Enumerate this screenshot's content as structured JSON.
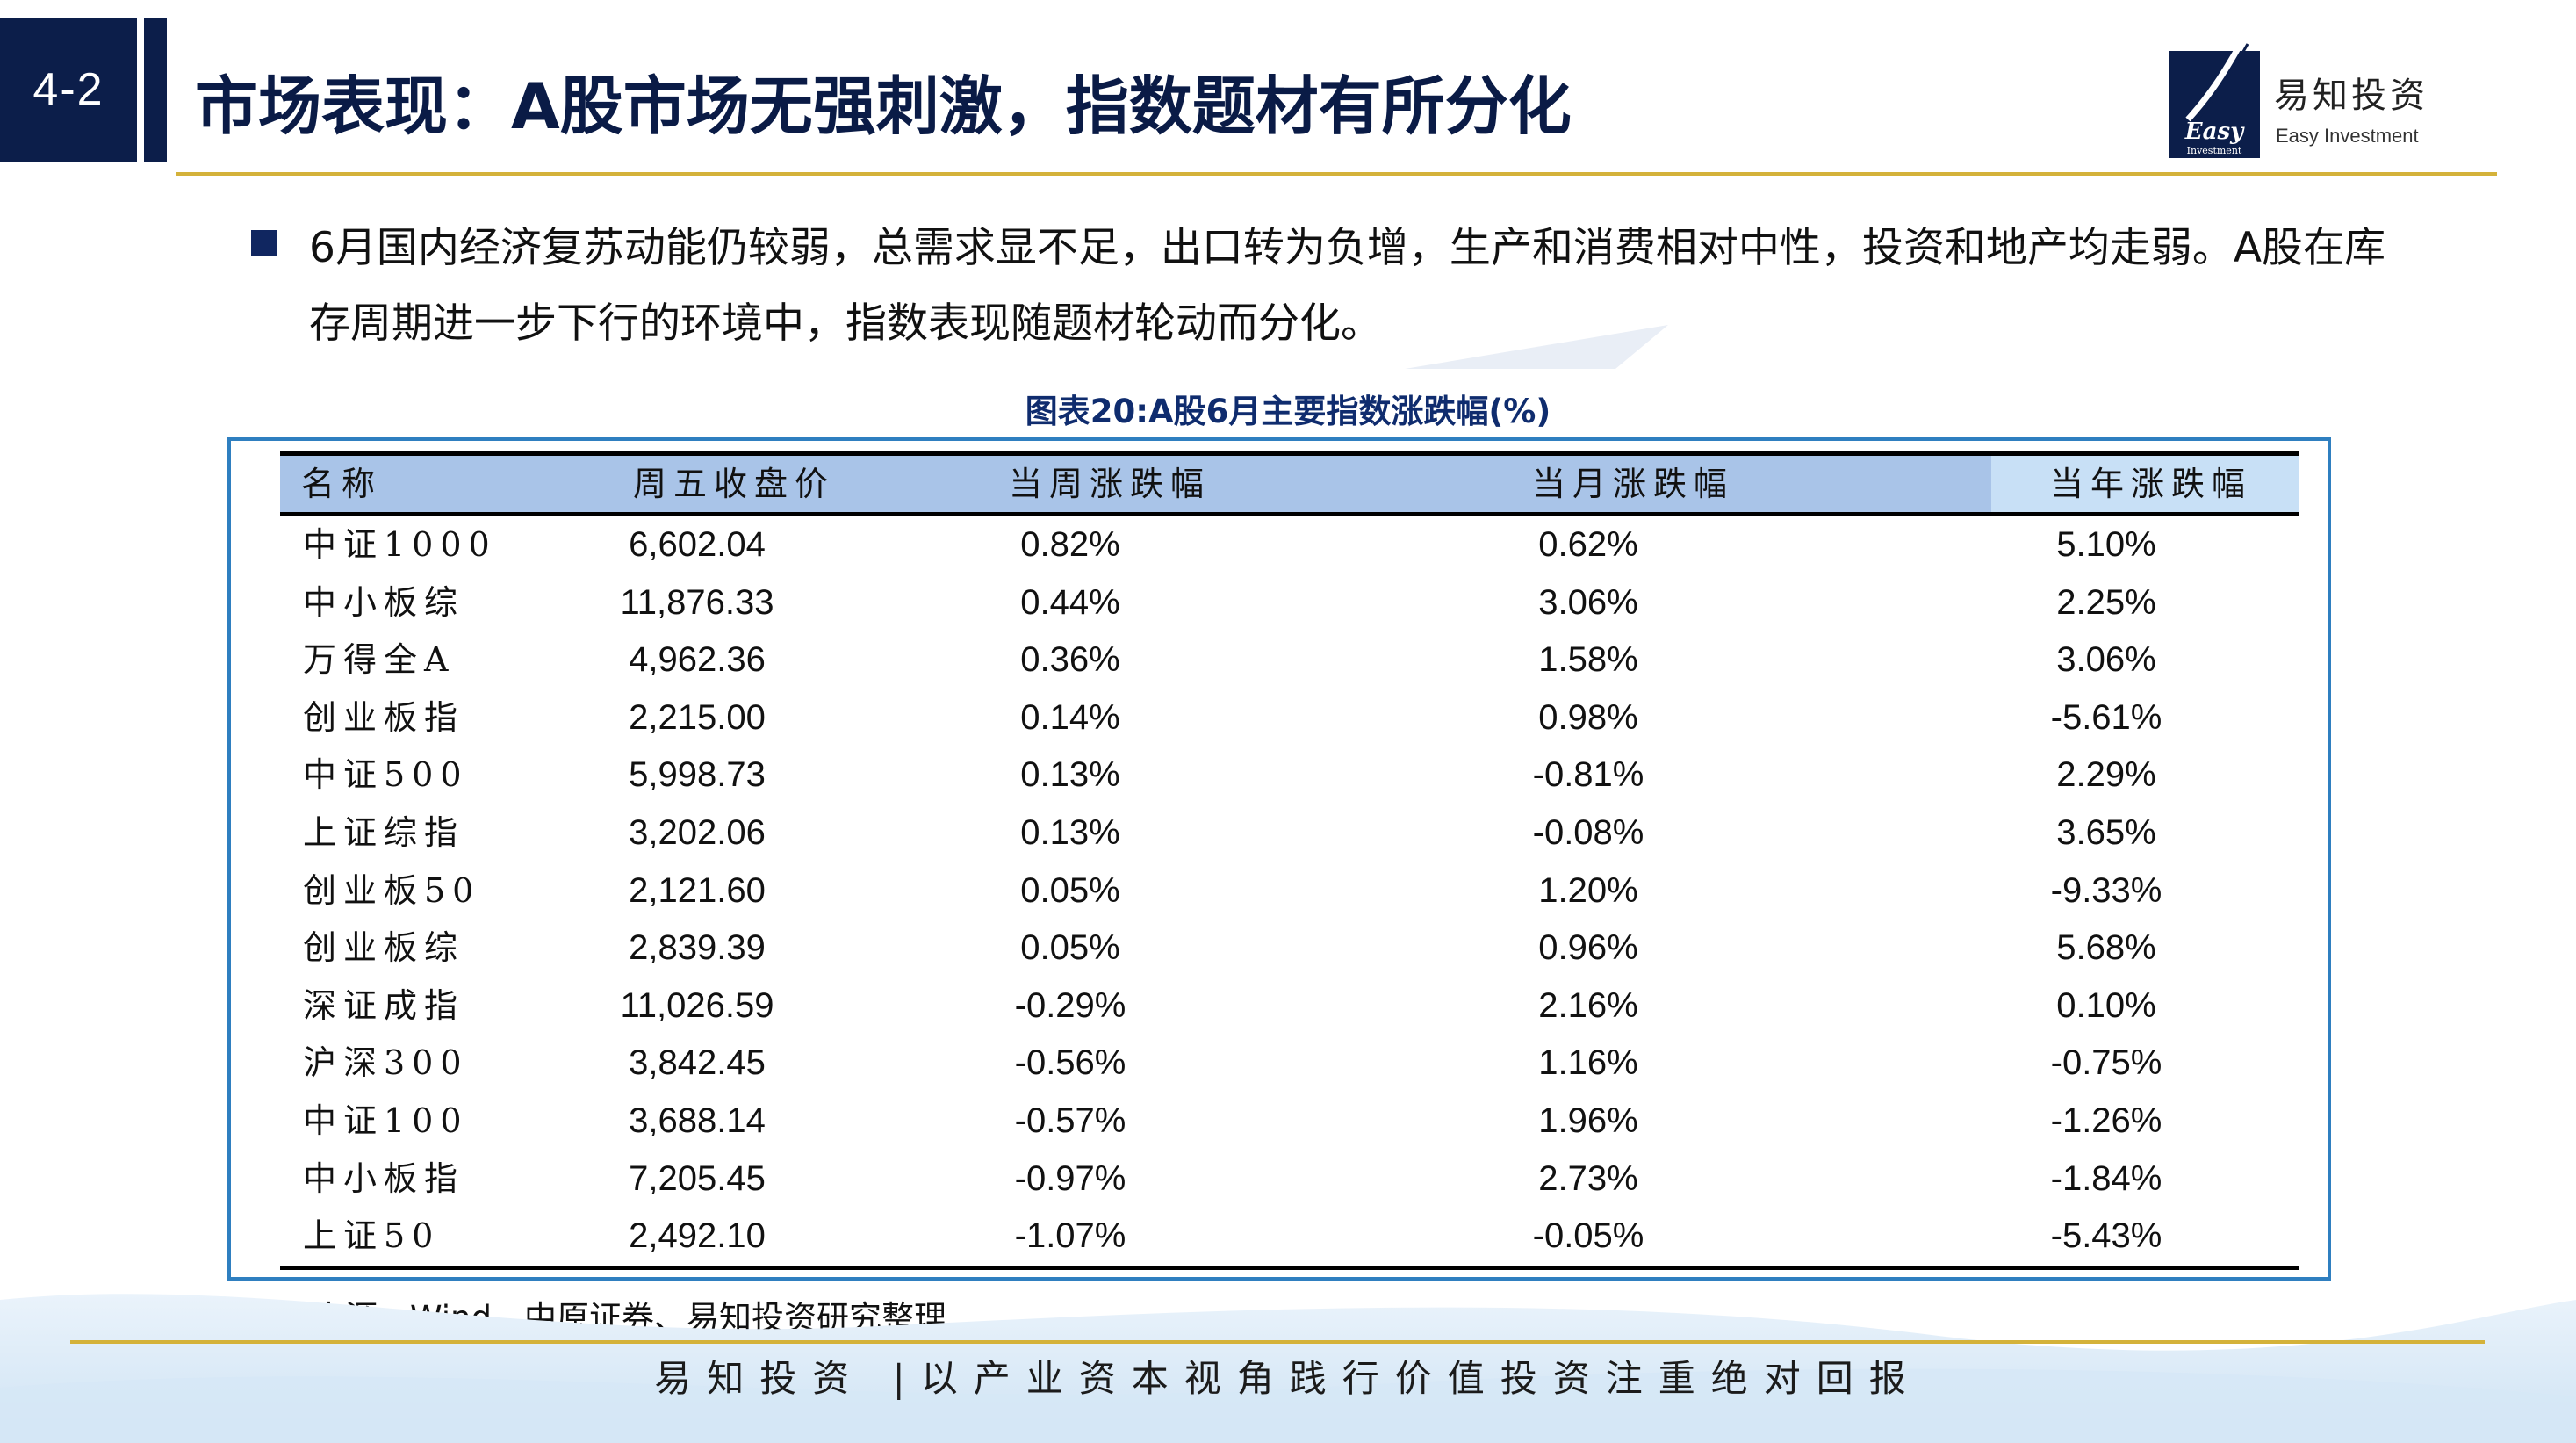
{
  "header": {
    "section_number": "4-2",
    "title": "市场表现：A股市场无强刺激，指数题材有所分化",
    "brand_cn": "易知投资",
    "brand_en": "Easy Investment",
    "logo_text": "Easy",
    "logo_subtext": "Investment"
  },
  "bullet": {
    "text": "6月国内经济复苏动能仍较弱，总需求显不足，出口转为负增，生产和消费相对中性，投资和地产均走弱。A股在库存周期进一步下行的环境中，指数表现随题材轮动而分化。"
  },
  "chart_data": {
    "type": "table",
    "title": "图表20:A股6月主要指数涨跌幅(%)",
    "columns": [
      "名称",
      "周五收盘价",
      "当周涨跌幅",
      "当月涨跌幅",
      "当年涨跌幅"
    ],
    "rows": [
      [
        "中证1000",
        "6,602.04",
        "0.82%",
        "0.62%",
        "5.10%"
      ],
      [
        "中小板综",
        "11,876.33",
        "0.44%",
        "3.06%",
        "2.25%"
      ],
      [
        "万得全A",
        "4,962.36",
        "0.36%",
        "1.58%",
        "3.06%"
      ],
      [
        "创业板指",
        "2,215.00",
        "0.14%",
        "0.98%",
        "-5.61%"
      ],
      [
        "中证500",
        "5,998.73",
        "0.13%",
        "-0.81%",
        "2.29%"
      ],
      [
        "上证综指",
        "3,202.06",
        "0.13%",
        "-0.08%",
        "3.65%"
      ],
      [
        "创业板50",
        "2,121.60",
        "0.05%",
        "1.20%",
        "-9.33%"
      ],
      [
        "创业板综",
        "2,839.39",
        "0.05%",
        "0.96%",
        "5.68%"
      ],
      [
        "深证成指",
        "11,026.59",
        "-0.29%",
        "2.16%",
        "0.10%"
      ],
      [
        "沪深300",
        "3,842.45",
        "-0.56%",
        "1.16%",
        "-0.75%"
      ],
      [
        "中证100",
        "3,688.14",
        "-0.57%",
        "1.96%",
        "-1.26%"
      ],
      [
        "中小板指",
        "7,205.45",
        "-0.97%",
        "2.73%",
        "-1.84%"
      ],
      [
        "上证50",
        "2,492.10",
        "-1.07%",
        "-0.05%",
        "-5.43%"
      ]
    ]
  },
  "source": "数据来源：Wind、中原证券、易知投资研究整理",
  "footer": {
    "slogan": "易知投资 |以产业资本视角践行价值投资注重绝对回报"
  },
  "colors": {
    "navy": "#0c1e4a",
    "gold_rule": "#d4b23a",
    "table_border": "#2f7fc0",
    "header_fill": "#a9c4e8",
    "header_highlight": "#c8e0f6"
  }
}
